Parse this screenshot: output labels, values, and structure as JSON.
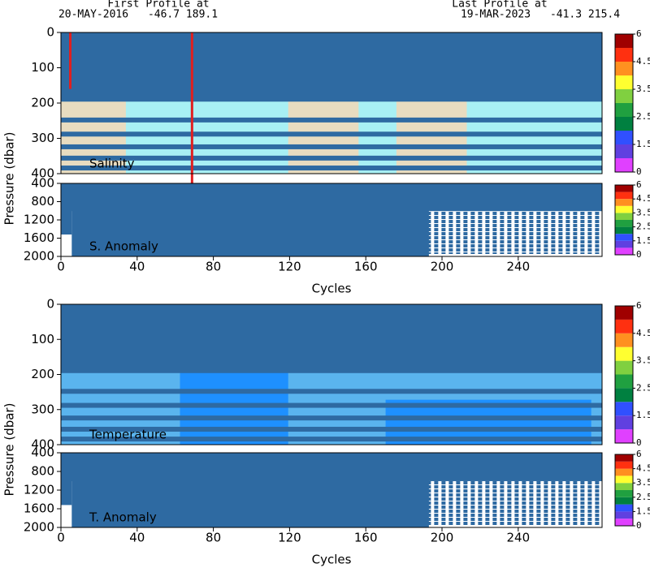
{
  "header": {
    "first_label": "First Profile at",
    "first_date": "20-MAY-2016",
    "first_position": "-46.7 189.1",
    "last_label": "Last Profile at",
    "last_date": "19-MAR-2023",
    "last_position": "-41.3 215.4"
  },
  "chart_data": [
    {
      "type": "heatmap",
      "title": "Salinity",
      "ylabel": "Pressure (dbar)",
      "xlim": [
        0,
        284
      ],
      "ylim": [
        0,
        400
      ],
      "yticks": [
        0,
        100,
        200,
        300,
        400
      ],
      "colorbar": {
        "ticks": [
          0,
          1.5,
          2.5,
          3.5,
          4.5,
          6
        ],
        "colors": [
          "#e040ff",
          "#6040e0",
          "#3050ff",
          "#008040",
          "#20a040",
          "#80d040",
          "#ffff30",
          "#ff9020",
          "#ff3010",
          "#a00000"
        ]
      }
    },
    {
      "type": "heatmap",
      "title": "S. Anomaly",
      "xlabel": "Cycles",
      "xlim": [
        0,
        284
      ],
      "xticks": [
        0,
        40,
        80,
        120,
        160,
        200,
        240
      ],
      "ylim": [
        400,
        2000
      ],
      "yticks": [
        400,
        800,
        1200,
        1600,
        2000
      ],
      "colorbar": {
        "ticks": [
          0,
          1.5,
          2.5,
          3.5,
          4.5,
          6
        ],
        "colors": [
          "#e040ff",
          "#6040e0",
          "#3050ff",
          "#008040",
          "#20a040",
          "#80d040",
          "#ffff30",
          "#ff9020",
          "#ff3010",
          "#a00000"
        ]
      }
    },
    {
      "type": "heatmap",
      "title": "Temperature",
      "ylabel": "Pressure (dbar)",
      "xlim": [
        0,
        284
      ],
      "ylim": [
        0,
        400
      ],
      "yticks": [
        0,
        100,
        200,
        300,
        400
      ],
      "colorbar": {
        "ticks": [
          0,
          1.5,
          2.5,
          3.5,
          4.5,
          6
        ],
        "colors": [
          "#e040ff",
          "#6040e0",
          "#3050ff",
          "#008040",
          "#20a040",
          "#80d040",
          "#ffff30",
          "#ff9020",
          "#ff3010",
          "#a00000"
        ]
      }
    },
    {
      "type": "heatmap",
      "title": "T. Anomaly",
      "xlabel": "Cycles",
      "xlim": [
        0,
        284
      ],
      "xticks": [
        0,
        40,
        80,
        120,
        160,
        200,
        240
      ],
      "ylim": [
        400,
        2000
      ],
      "yticks": [
        400,
        800,
        1200,
        1600,
        2000
      ],
      "colorbar": {
        "ticks": [
          0,
          1.5,
          2.5,
          3.5,
          4.5,
          6
        ],
        "colors": [
          "#e040ff",
          "#6040e0",
          "#3050ff",
          "#008040",
          "#20a040",
          "#80d040",
          "#ffff30",
          "#ff9020",
          "#ff3010",
          "#a00000"
        ]
      }
    }
  ]
}
